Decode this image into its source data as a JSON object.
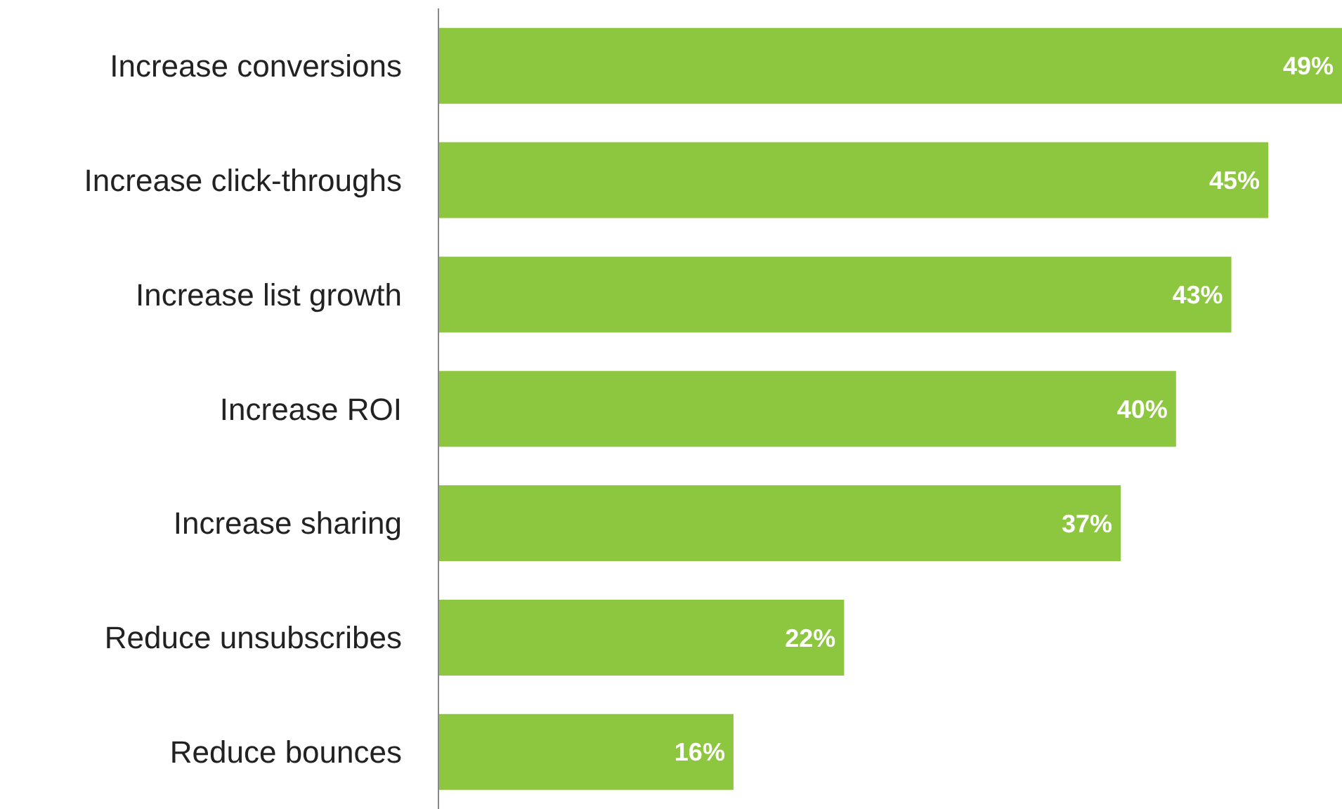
{
  "chart_data": {
    "type": "bar",
    "orientation": "horizontal",
    "categories": [
      "Increase conversions",
      "Increase click-throughs",
      "Increase list growth",
      "Increase ROI",
      "Increase sharing",
      "Reduce unsubscribes",
      "Reduce bounces"
    ],
    "values": [
      49,
      45,
      43,
      40,
      37,
      22,
      16
    ],
    "value_labels": [
      "49%",
      "45%",
      "43%",
      "40%",
      "37%",
      "22%",
      "16%"
    ],
    "color": "#8dc63f"
  }
}
